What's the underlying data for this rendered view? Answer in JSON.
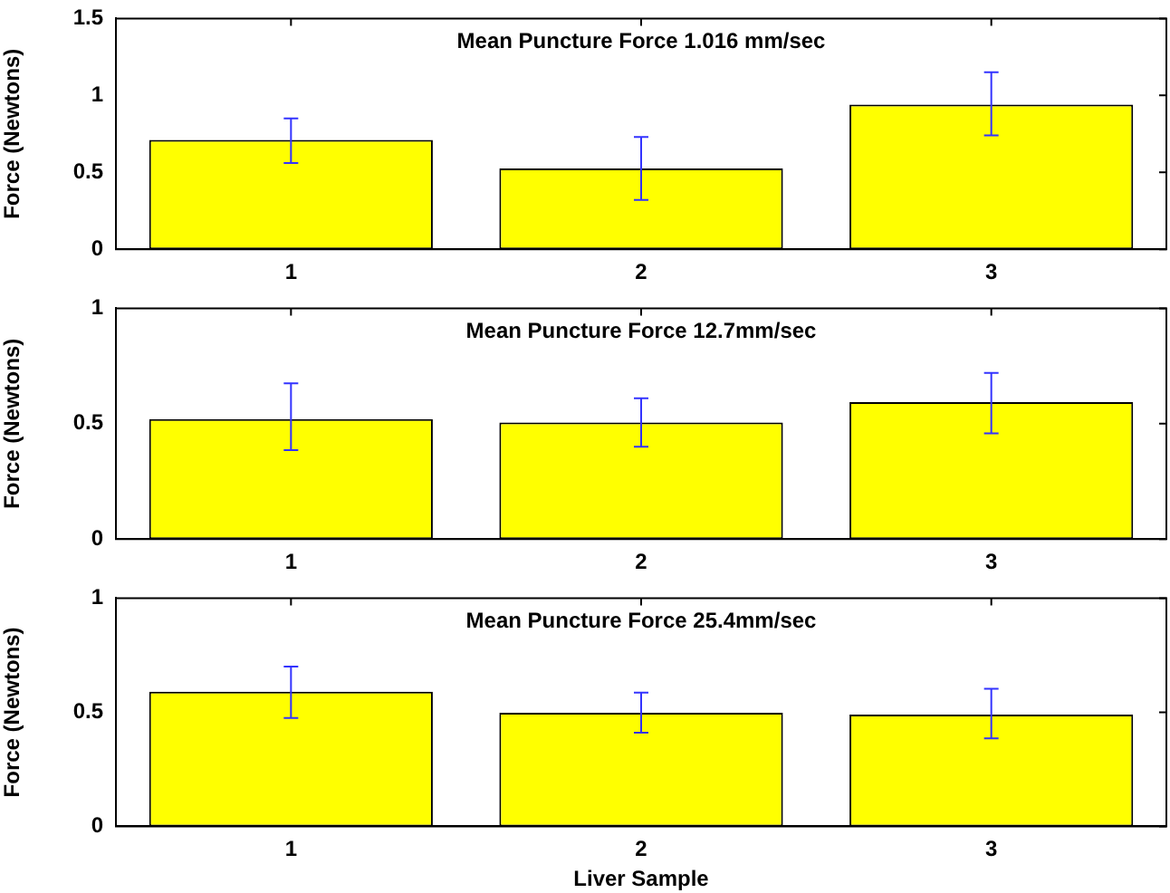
{
  "chart_data": [
    {
      "type": "bar",
      "title": "Mean Puncture Force 1.016 mm/sec",
      "ylabel": "Force (Newtons)",
      "categories": [
        "1",
        "2",
        "3"
      ],
      "values": [
        0.71,
        0.525,
        0.94
      ],
      "color": "#ffff00",
      "errors": [
        [
          0.56,
          0.85
        ],
        [
          0.32,
          0.73
        ],
        [
          0.74,
          1.15
        ]
      ],
      "ylim": [
        0,
        1.5
      ],
      "yticks": [
        0,
        0.5,
        1,
        1.5
      ],
      "grid": false,
      "legend": false
    },
    {
      "type": "bar",
      "title": "Mean Puncture Force 12.7mm/sec",
      "ylabel": "Force (Newtons)",
      "categories": [
        "1",
        "2",
        "3"
      ],
      "values": [
        0.52,
        0.505,
        0.593
      ],
      "color": "#ffff00",
      "errors": [
        [
          0.385,
          0.675
        ],
        [
          0.4,
          0.61
        ],
        [
          0.458,
          0.72
        ]
      ],
      "ylim": [
        0,
        1
      ],
      "yticks": [
        0,
        0.5,
        1
      ],
      "grid": false,
      "legend": false
    },
    {
      "type": "bar",
      "title": "Mean Puncture Force 25.4mm/sec",
      "ylabel": "Force (Newtons)",
      "xlabel": "Liver Sample",
      "categories": [
        "1",
        "2",
        "3"
      ],
      "values": [
        0.59,
        0.498,
        0.49
      ],
      "color": "#ffff00",
      "errors": [
        [
          0.475,
          0.7
        ],
        [
          0.41,
          0.586
        ],
        [
          0.386,
          0.603
        ]
      ],
      "ylim": [
        0,
        1
      ],
      "yticks": [
        0,
        0.5,
        1
      ],
      "grid": false,
      "legend": false
    }
  ]
}
